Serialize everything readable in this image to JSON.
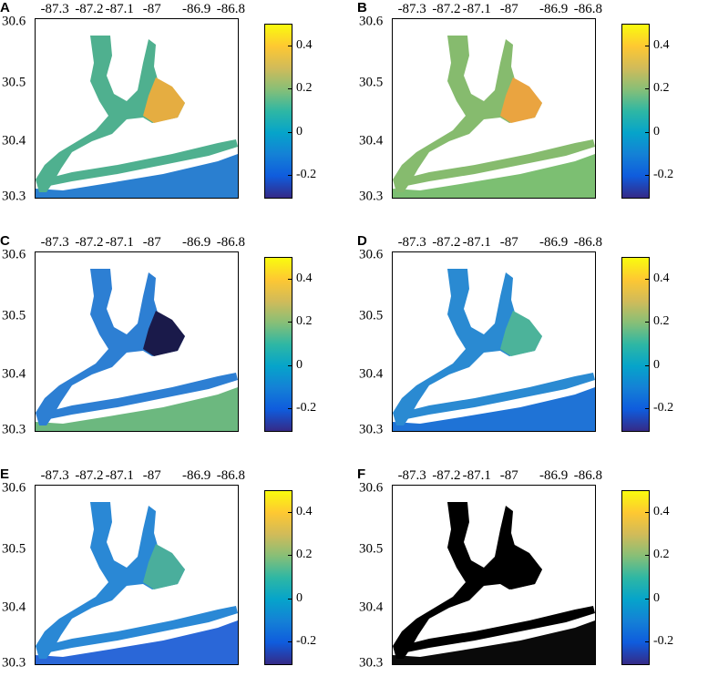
{
  "x_ticks": [
    "-87.3",
    "-87.2",
    "-87.1",
    "-87",
    "-86.9",
    "-86.8"
  ],
  "y_ticks": [
    "30.6",
    "30.5",
    "30.4",
    "30.3"
  ],
  "colorbar_ticks": [
    "0.4",
    "0.2",
    "0",
    "-0.2"
  ],
  "colorbar_range": [
    -0.3,
    0.5
  ],
  "colormap": [
    "#352a87",
    "#0f5cdd",
    "#1481d6",
    "#06a4ca",
    "#2eb7a4",
    "#87bf77",
    "#d1bb59",
    "#fec832",
    "#f9fb0e"
  ],
  "panels": [
    {
      "letter": "A",
      "bay_color": "#4fb08f",
      "east_color": "#e5ad41",
      "gulf_color": "#2a7fd0"
    },
    {
      "letter": "B",
      "bay_color": "#86bb6e",
      "east_color": "#eaa440",
      "gulf_color": "#7cbf72"
    },
    {
      "letter": "C",
      "bay_color": "#2d7fd3",
      "east_color": "#1a1a4a",
      "gulf_color": "#6cb87f"
    },
    {
      "letter": "D",
      "bay_color": "#2a8ad2",
      "east_color": "#4cb39a",
      "gulf_color": "#1f73d6"
    },
    {
      "letter": "E",
      "bay_color": "#2a88d5",
      "east_color": "#4aae9c",
      "gulf_color": "#2a67d8"
    },
    {
      "letter": "F",
      "bay_color": "#000000",
      "east_color": "#000000",
      "gulf_color": "#0a0a0a"
    }
  ]
}
